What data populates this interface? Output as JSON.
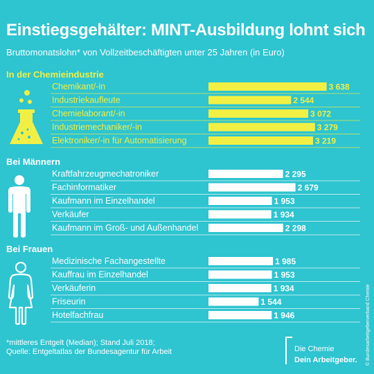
{
  "header": {
    "title": "Einstiegsgehälter: MINT-Ausbildung lohnt sich",
    "subtitle": "Bruttomonatslohn* von Vollzeitbeschäftigten unter 25 Jahren (in Euro)"
  },
  "colors": {
    "background": "#2ec4d0",
    "chemie_accent": "#f2ef44",
    "bar_default": "#ffffff",
    "text": "#ffffff"
  },
  "chart_data": {
    "type": "bar",
    "orientation": "horizontal",
    "unit": "Euro",
    "groups": [
      {
        "label": "In der Chemieindustrie",
        "icon": "flask-icon",
        "color": "#f2ef44",
        "categories": [
          "Chemikant/-in",
          "Industriekaufleute",
          "Chemielaborant/-in",
          "Industriemechaniker/-in",
          "Elektroniker/-in für Automatisierung"
        ],
        "values": [
          3638,
          2544,
          3072,
          3279,
          3219
        ],
        "value_labels": [
          "3 638",
          "2 544",
          "3 072",
          "3 279",
          "3 219"
        ]
      },
      {
        "label": "Bei Männern",
        "icon": "man-icon",
        "color": "#ffffff",
        "categories": [
          "Kraftfahrzeugmechatroniker",
          "Fachinformatiker",
          "Kaufmann im Einzelhandel",
          "Verkäufer",
          "Kaufmann im Groß- und Außenhandel"
        ],
        "values": [
          2295,
          2679,
          1953,
          1934,
          2298
        ],
        "value_labels": [
          "2 295",
          "2 679",
          "1 953",
          "1 934",
          "2 298"
        ]
      },
      {
        "label": "Bei Frauen",
        "icon": "woman-icon",
        "color": "#ffffff",
        "categories": [
          "Medizinische Fachangestellte",
          "Kauffrau im Einzelhandel",
          "Verkäuferin",
          "Friseurin",
          "Hotelfachfrau"
        ],
        "values": [
          1985,
          1953,
          1934,
          1544,
          1946
        ],
        "value_labels": [
          "1 985",
          "1 953",
          "1 934",
          "1 544",
          "1 946"
        ]
      }
    ]
  },
  "footnote": {
    "line1": "*mittleres Entgelt (Median); Stand Juli 2018;",
    "line2": "Quelle: Entgeltatlas der Bundesagentur für Arbeit"
  },
  "logo": {
    "line1": "Die Chemie",
    "line2": "Dein Arbeitgeber."
  },
  "credit": "© Bundesarbeitgeberverband Chemie"
}
